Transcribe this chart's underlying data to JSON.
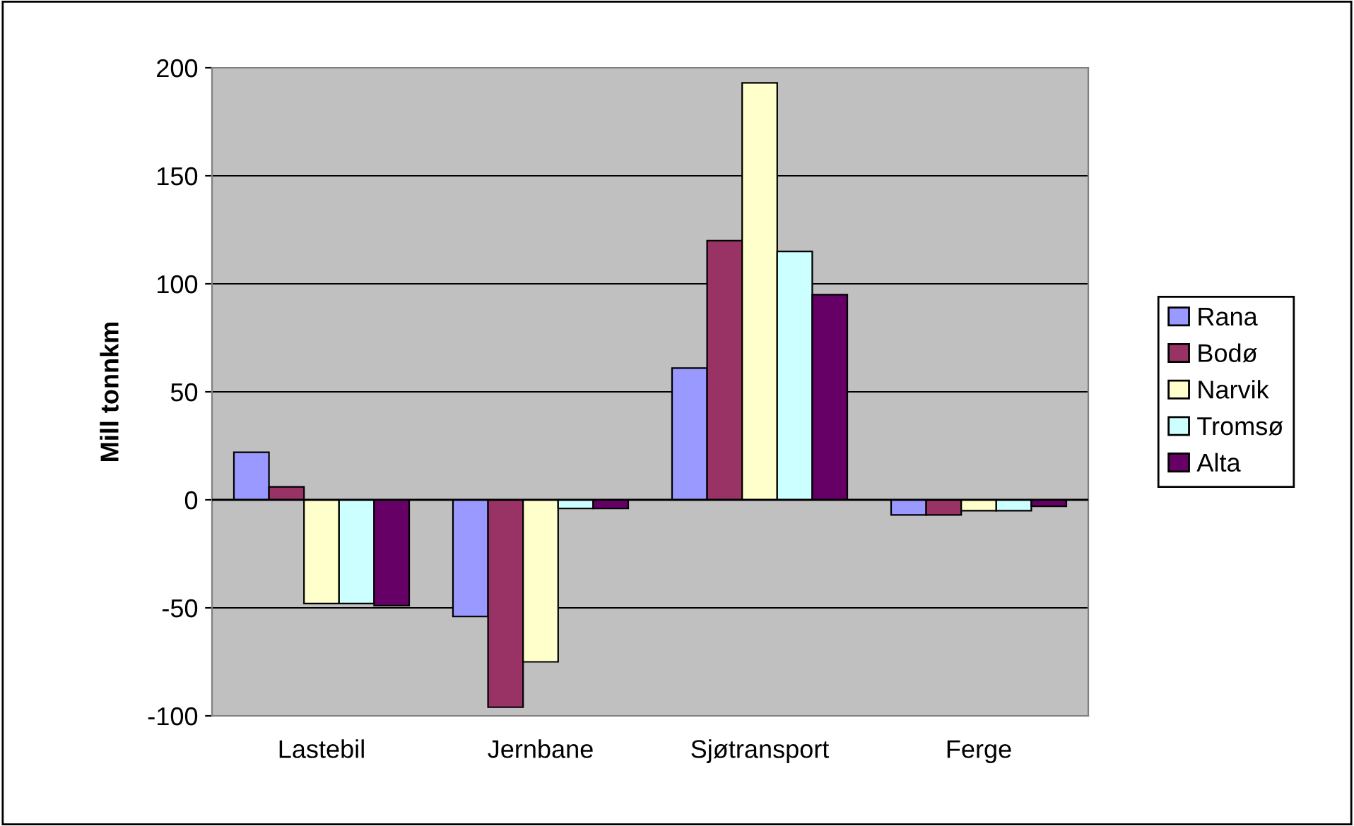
{
  "chart_data": {
    "type": "bar",
    "ylabel": "Mill tonnkm",
    "categories": [
      "Lastebil",
      "Jernbane",
      "Sjøtransport",
      "Ferge"
    ],
    "series": [
      {
        "name": "Rana",
        "color": "#9999ff",
        "values": [
          22,
          -54,
          61,
          -7
        ]
      },
      {
        "name": "Bodø",
        "color": "#993366",
        "values": [
          6,
          -96,
          120,
          -7
        ]
      },
      {
        "name": "Narvik",
        "color": "#ffffcc",
        "values": [
          -48,
          -75,
          193,
          -5
        ]
      },
      {
        "name": "Tromsø",
        "color": "#ccffff",
        "values": [
          -48,
          -4,
          115,
          -5
        ]
      },
      {
        "name": "Alta",
        "color": "#660066",
        "values": [
          -49,
          -4,
          95,
          -3
        ]
      }
    ],
    "ylim": [
      -100,
      200
    ],
    "yticks": [
      -100,
      -50,
      0,
      50,
      100,
      150,
      200
    ],
    "grid": "y",
    "legend": "right"
  }
}
